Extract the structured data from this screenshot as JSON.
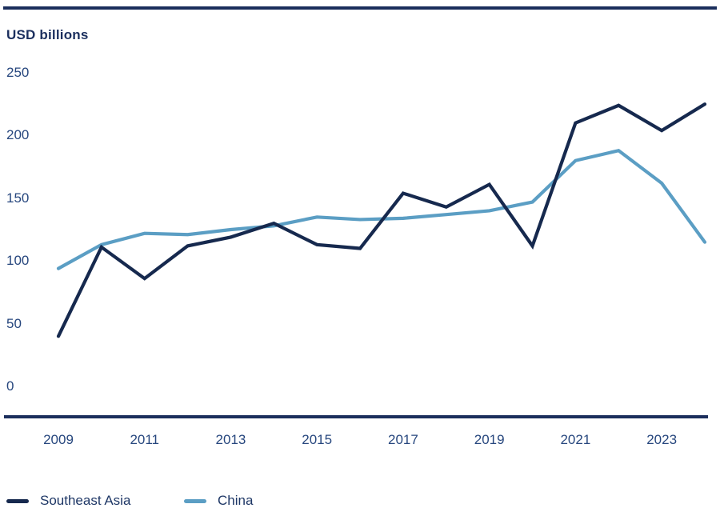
{
  "page": {
    "top_rule_color": "#1b2e5c",
    "axis_color": "#1b2e5c",
    "tick_text_color": "#27477e"
  },
  "chart": {
    "unit_label": "USD billions",
    "y_ticks": [
      250,
      200,
      150,
      100,
      50,
      0
    ],
    "x_ticks": [
      "2009",
      "2011",
      "2013",
      "2015",
      "2017",
      "2019",
      "2021",
      "2023"
    ]
  },
  "chart_data": {
    "type": "line",
    "title": "USD billions",
    "x": [
      2009,
      2010,
      2011,
      2012,
      2013,
      2014,
      2015,
      2016,
      2017,
      2018,
      2019,
      2020,
      2021,
      2022,
      2023,
      2024
    ],
    "series": [
      {
        "name": "Southeast Asia",
        "color": "#16294e",
        "values": [
          40,
          111,
          86,
          112,
          119,
          130,
          113,
          110,
          154,
          143,
          161,
          112,
          210,
          224,
          204,
          225
        ]
      },
      {
        "name": "China",
        "color": "#5b9ec4",
        "values": [
          94,
          113,
          122,
          121,
          125,
          128,
          135,
          133,
          134,
          137,
          140,
          147,
          180,
          188,
          162,
          115
        ]
      }
    ],
    "ylim": [
      0,
      250
    ],
    "grid": false,
    "legend_position": "bottom-left"
  },
  "legend": {
    "items": [
      {
        "label": "Southeast Asia",
        "color": "#16294e"
      },
      {
        "label": "China",
        "color": "#5b9ec4"
      }
    ]
  }
}
